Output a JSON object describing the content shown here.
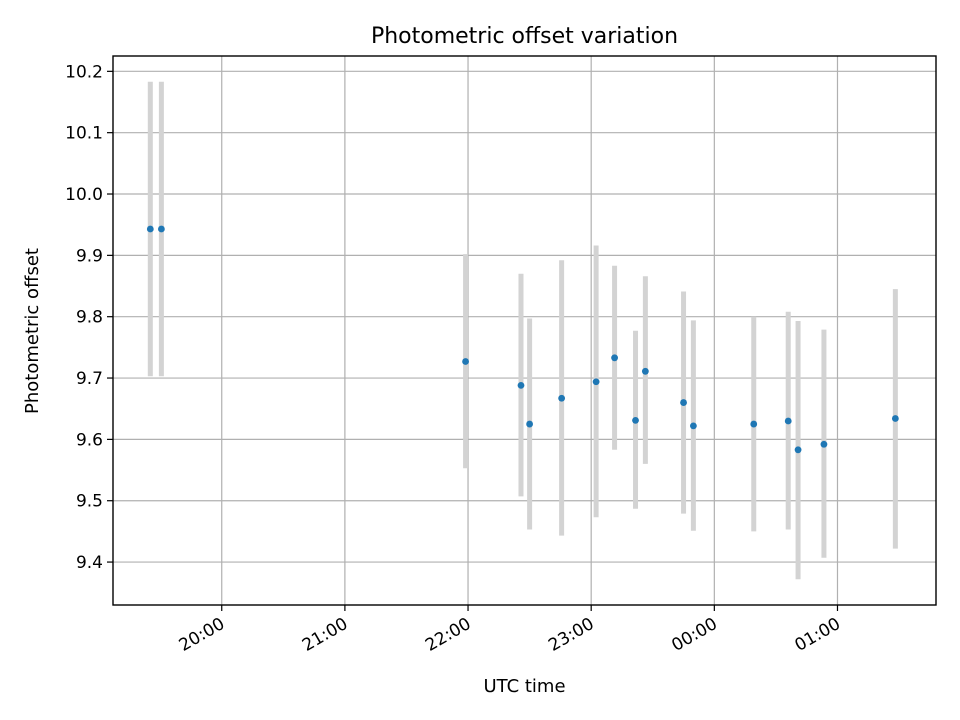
{
  "chart_data": {
    "type": "scatter",
    "title": "Photometric offset variation",
    "xlabel": "UTC time",
    "ylabel": "Photometric offset",
    "x_unit": "hours UTC (values after 24 are the following day)",
    "xlim": [
      19.117,
      25.8
    ],
    "ylim": [
      9.33,
      10.225
    ],
    "grid": true,
    "point_color": "#1f77b4",
    "errorbar_color": "#d3d3d3",
    "x_ticks": [
      {
        "value": 20,
        "label": "20:00"
      },
      {
        "value": 21,
        "label": "21:00"
      },
      {
        "value": 22,
        "label": "22:00"
      },
      {
        "value": 23,
        "label": "23:00"
      },
      {
        "value": 24,
        "label": "00:00"
      },
      {
        "value": 25,
        "label": "01:00"
      }
    ],
    "y_ticks": [
      {
        "value": 9.4,
        "label": "9.4"
      },
      {
        "value": 9.5,
        "label": "9.5"
      },
      {
        "value": 9.6,
        "label": "9.6"
      },
      {
        "value": 9.7,
        "label": "9.7"
      },
      {
        "value": 9.8,
        "label": "9.8"
      },
      {
        "value": 9.9,
        "label": "9.9"
      },
      {
        "value": 10.0,
        "label": "10.0"
      },
      {
        "value": 10.1,
        "label": "10.1"
      },
      {
        "value": 10.2,
        "label": "10.2"
      }
    ],
    "points": [
      {
        "x": 19.42,
        "y": 9.943,
        "low": 9.703,
        "high": 10.183
      },
      {
        "x": 19.51,
        "y": 9.943,
        "low": 9.703,
        "high": 10.183
      },
      {
        "x": 21.98,
        "y": 9.727,
        "low": 9.553,
        "high": 9.902
      },
      {
        "x": 22.43,
        "y": 9.688,
        "low": 9.507,
        "high": 9.87
      },
      {
        "x": 22.5,
        "y": 9.625,
        "low": 9.453,
        "high": 9.797
      },
      {
        "x": 22.76,
        "y": 9.667,
        "low": 9.443,
        "high": 9.892
      },
      {
        "x": 23.04,
        "y": 9.694,
        "low": 9.473,
        "high": 9.916
      },
      {
        "x": 23.19,
        "y": 9.733,
        "low": 9.583,
        "high": 9.883
      },
      {
        "x": 23.36,
        "y": 9.631,
        "low": 9.487,
        "high": 9.777
      },
      {
        "x": 23.44,
        "y": 9.711,
        "low": 9.56,
        "high": 9.866
      },
      {
        "x": 23.75,
        "y": 9.66,
        "low": 9.479,
        "high": 9.841
      },
      {
        "x": 23.83,
        "y": 9.622,
        "low": 9.451,
        "high": 9.794
      },
      {
        "x": 24.32,
        "y": 9.625,
        "low": 9.45,
        "high": 9.8
      },
      {
        "x": 24.6,
        "y": 9.63,
        "low": 9.453,
        "high": 9.808
      },
      {
        "x": 24.68,
        "y": 9.583,
        "low": 9.372,
        "high": 9.793
      },
      {
        "x": 24.89,
        "y": 9.592,
        "low": 9.407,
        "high": 9.779
      },
      {
        "x": 25.47,
        "y": 9.634,
        "low": 9.422,
        "high": 9.845
      }
    ]
  }
}
